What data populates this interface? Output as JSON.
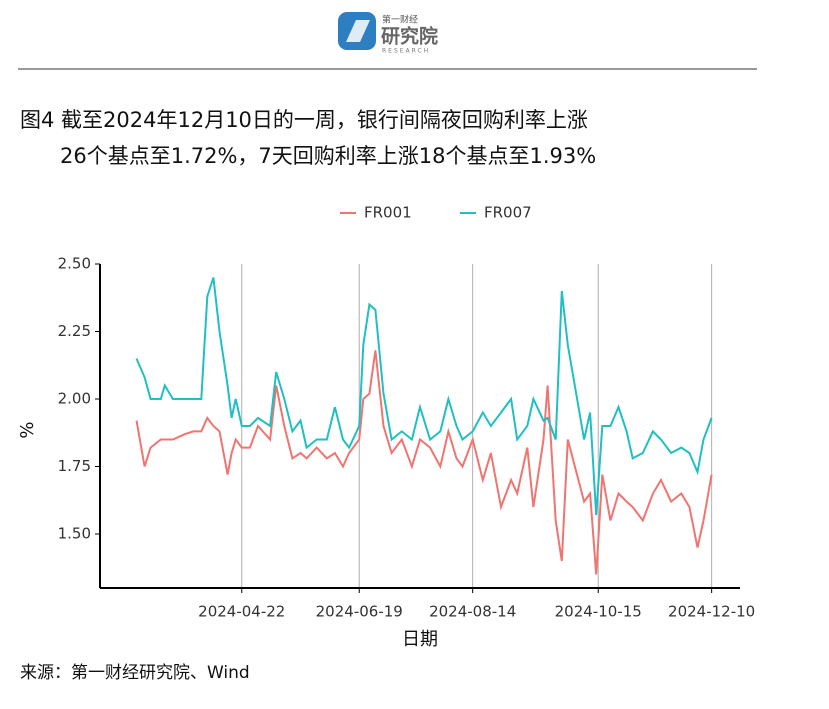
{
  "header": {
    "logo_top": "第一财经",
    "logo_main": "研究院",
    "logo_sub": "RESEARCH"
  },
  "chart_data": {
    "type": "line",
    "title": [
      "图4  截至2024年12月10日的一周，银行间隔夜回购利率上涨",
      "26个基点至1.72%，7天回购利率上涨18个基点至1.93%"
    ],
    "x_label": "日期",
    "y_label": "%",
    "x": [
      "2024-03-01",
      "2024-03-05",
      "2024-03-08",
      "2024-03-13",
      "2024-03-15",
      "2024-03-19",
      "2024-03-25",
      "2024-03-29",
      "2024-04-02",
      "2024-04-05",
      "2024-04-08",
      "2024-04-11",
      "2024-04-15",
      "2024-04-17",
      "2024-04-19",
      "2024-04-22",
      "2024-04-26",
      "2024-04-30",
      "2024-05-06",
      "2024-05-09",
      "2024-05-13",
      "2024-05-17",
      "2024-05-21",
      "2024-05-24",
      "2024-05-29",
      "2024-06-03",
      "2024-06-07",
      "2024-06-11",
      "2024-06-14",
      "2024-06-19",
      "2024-06-21",
      "2024-06-24",
      "2024-06-27",
      "2024-07-01",
      "2024-07-05",
      "2024-07-10",
      "2024-07-15",
      "2024-07-19",
      "2024-07-24",
      "2024-07-29",
      "2024-08-02",
      "2024-08-06",
      "2024-08-09",
      "2024-08-14",
      "2024-08-19",
      "2024-08-23",
      "2024-08-28",
      "2024-09-02",
      "2024-09-05",
      "2024-09-10",
      "2024-09-13",
      "2024-09-18",
      "2024-09-20",
      "2024-09-24",
      "2024-09-27",
      "2024-09-30",
      "2024-10-08",
      "2024-10-11",
      "2024-10-14",
      "2024-10-17",
      "2024-10-21",
      "2024-10-25",
      "2024-10-29",
      "2024-11-01",
      "2024-11-06",
      "2024-11-11",
      "2024-11-15",
      "2024-11-20",
      "2024-11-25",
      "2024-11-29",
      "2024-12-03",
      "2024-12-06",
      "2024-12-10"
    ],
    "series": [
      {
        "name": "FR001",
        "color": "#f07470",
        "values": [
          1.92,
          1.75,
          1.82,
          1.85,
          1.85,
          1.85,
          1.87,
          1.88,
          1.88,
          1.93,
          1.9,
          1.88,
          1.72,
          1.8,
          1.85,
          1.82,
          1.82,
          1.9,
          1.85,
          2.05,
          1.9,
          1.78,
          1.8,
          1.78,
          1.82,
          1.78,
          1.8,
          1.75,
          1.8,
          1.85,
          2.0,
          2.02,
          2.18,
          1.9,
          1.8,
          1.85,
          1.75,
          1.85,
          1.82,
          1.75,
          1.88,
          1.78,
          1.75,
          1.85,
          1.7,
          1.8,
          1.6,
          1.7,
          1.65,
          1.82,
          1.6,
          1.85,
          2.05,
          1.55,
          1.4,
          1.85,
          1.62,
          1.65,
          1.35,
          1.72,
          1.55,
          1.65,
          1.62,
          1.6,
          1.55,
          1.65,
          1.7,
          1.62,
          1.65,
          1.6,
          1.45,
          1.55,
          1.72
        ]
      },
      {
        "name": "FR007",
        "color": "#1fbfc4",
        "values": [
          2.15,
          2.08,
          2.0,
          2.0,
          2.05,
          2.0,
          2.0,
          2.0,
          2.0,
          2.38,
          2.45,
          2.25,
          2.05,
          1.93,
          2.0,
          1.9,
          1.9,
          1.93,
          1.9,
          2.1,
          2.0,
          1.88,
          1.92,
          1.82,
          1.85,
          1.85,
          1.97,
          1.85,
          1.82,
          1.9,
          2.2,
          2.35,
          2.33,
          2.02,
          1.85,
          1.88,
          1.85,
          1.97,
          1.85,
          1.88,
          2.0,
          1.9,
          1.85,
          1.88,
          1.95,
          1.9,
          1.95,
          2.0,
          1.85,
          1.9,
          2.0,
          1.92,
          1.93,
          1.85,
          2.4,
          2.2,
          1.85,
          1.95,
          1.57,
          1.9,
          1.9,
          1.97,
          1.88,
          1.78,
          1.8,
          1.88,
          1.85,
          1.8,
          1.82,
          1.8,
          1.73,
          1.85,
          1.93
        ]
      }
    ],
    "xlim": [
      "2024-02-12",
      "2024-12-24"
    ],
    "xticks": [
      "2024-04-22",
      "2024-06-19",
      "2024-08-14",
      "2024-10-15",
      "2024-12-10"
    ],
    "ylim": [
      1.3,
      2.5
    ],
    "yticks": [
      {
        "value": 1.5,
        "label": "1.50"
      },
      {
        "value": 1.75,
        "label": "1.75"
      },
      {
        "value": 2,
        "label": "2.00"
      },
      {
        "value": 2.25,
        "label": "2.25"
      },
      {
        "value": 2.5,
        "label": "2.50"
      }
    ],
    "grid": "x",
    "legend": "top",
    "source": "来源：第一财经研究院、Wind"
  }
}
